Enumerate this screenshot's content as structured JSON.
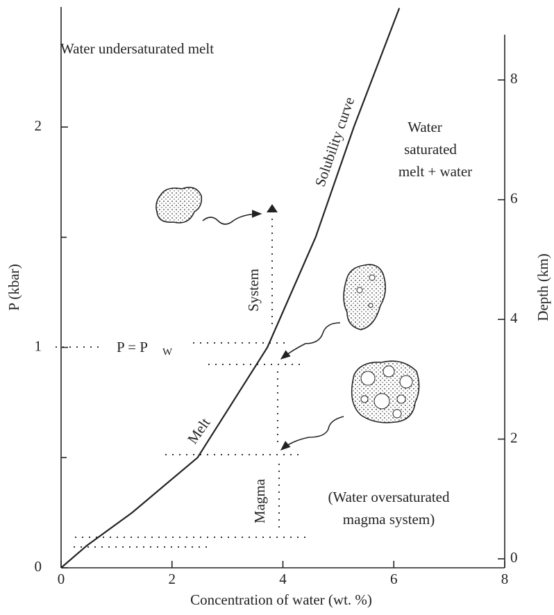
{
  "chart_data": {
    "type": "line",
    "x_label": "Concentration of water (wt. %)",
    "y_label": "P (kbar)",
    "y2_label": "Depth (km)",
    "x": [
      0,
      0.46,
      1.28,
      2.46,
      3.72,
      4.59,
      5.28,
      6.1
    ],
    "series": [
      {
        "name": "Solubility curve",
        "color": "#222",
        "values": [
          0,
          0.1,
          0.25,
          0.5,
          1,
          1.5,
          2,
          2.54
        ]
      }
    ],
    "xlim": [
      0,
      8
    ],
    "xticks": [
      0,
      2,
      4,
      6,
      8
    ],
    "ylim": [
      0,
      2.545
    ],
    "yticks": [
      0,
      1,
      2
    ],
    "yminorticks": [
      0.5,
      1.5
    ],
    "y2lim": [
      -0.15,
      9.22
    ],
    "y2ticks": [
      0,
      2,
      4,
      6,
      8
    ],
    "grid": false,
    "annotations": {
      "undersaturated": "Water undersaturated melt",
      "saturated": [
        "Water",
        "saturated",
        "melt + water"
      ],
      "system": "System",
      "pressure": "P = P",
      "pressure_sub": "W",
      "melt": "Melt",
      "magma": "Magma",
      "oversaturated": [
        "(Water oversaturated",
        "magma system)"
      ]
    }
  }
}
